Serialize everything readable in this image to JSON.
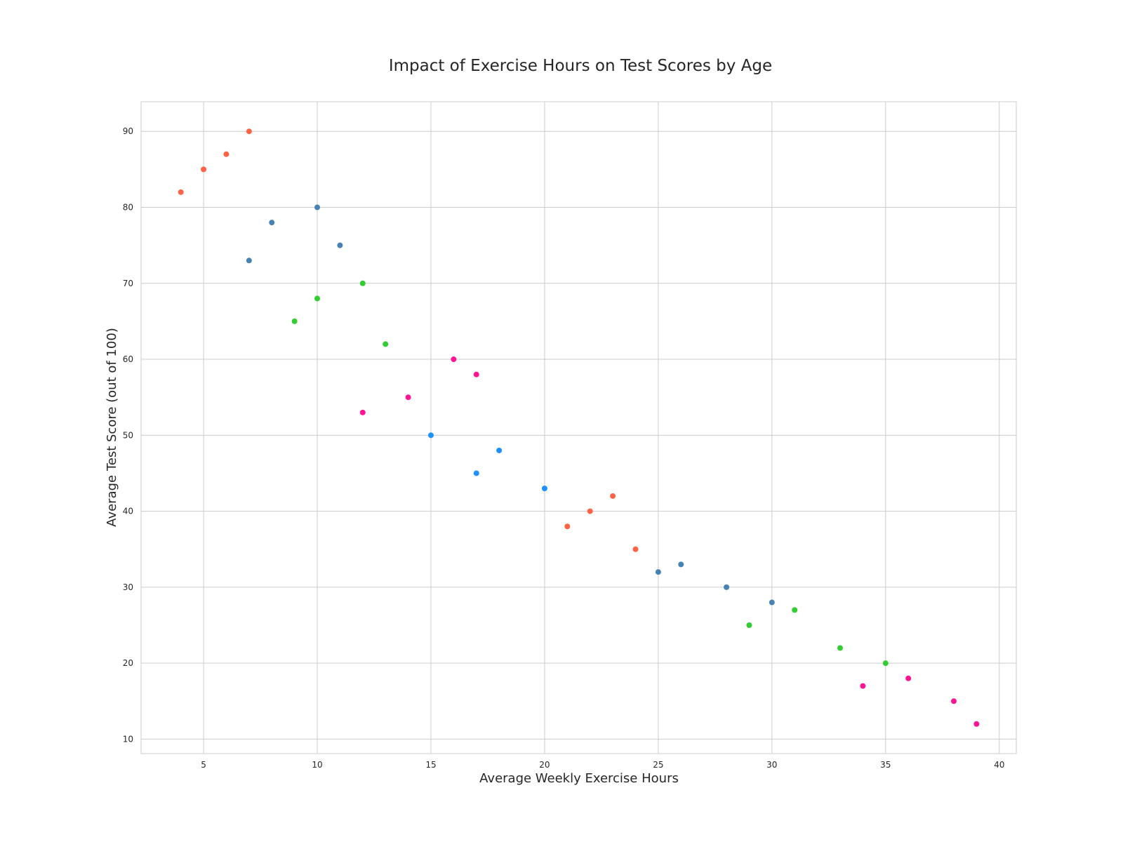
{
  "chart_data": {
    "type": "scatter",
    "title": "Impact of Exercise Hours on Test Scores by Age",
    "xlabel": "Average Weekly Exercise Hours",
    "ylabel": "Average Test Score (out of 100)",
    "xlim": [
      2.25,
      40.75
    ],
    "ylim": [
      8.1,
      93.9
    ],
    "xticks": [
      5,
      10,
      15,
      20,
      25,
      30,
      35,
      40
    ],
    "yticks": [
      10,
      20,
      30,
      40,
      50,
      60,
      70,
      80,
      90
    ],
    "grid": true,
    "legend": "none",
    "points": [
      {
        "x": 4,
        "y": 82,
        "color": "#ff6347"
      },
      {
        "x": 5,
        "y": 85,
        "color": "#ff6347"
      },
      {
        "x": 6,
        "y": 87,
        "color": "#ff6347"
      },
      {
        "x": 7,
        "y": 90,
        "color": "#ff6347"
      },
      {
        "x": 7,
        "y": 73,
        "color": "#4682b4"
      },
      {
        "x": 8,
        "y": 78,
        "color": "#4682b4"
      },
      {
        "x": 10,
        "y": 80,
        "color": "#4682b4"
      },
      {
        "x": 11,
        "y": 75,
        "color": "#4682b4"
      },
      {
        "x": 9,
        "y": 65,
        "color": "#32cd32"
      },
      {
        "x": 10,
        "y": 68,
        "color": "#32cd32"
      },
      {
        "x": 12,
        "y": 70,
        "color": "#32cd32"
      },
      {
        "x": 13,
        "y": 62,
        "color": "#32cd32"
      },
      {
        "x": 12,
        "y": 53,
        "color": "#ff1493"
      },
      {
        "x": 14,
        "y": 55,
        "color": "#ff1493"
      },
      {
        "x": 16,
        "y": 60,
        "color": "#ff1493"
      },
      {
        "x": 17,
        "y": 58,
        "color": "#ff1493"
      },
      {
        "x": 15,
        "y": 50,
        "color": "#1e90ff"
      },
      {
        "x": 17,
        "y": 45,
        "color": "#1e90ff"
      },
      {
        "x": 18,
        "y": 48,
        "color": "#1e90ff"
      },
      {
        "x": 20,
        "y": 43,
        "color": "#1e90ff"
      },
      {
        "x": 21,
        "y": 38,
        "color": "#ff6347"
      },
      {
        "x": 22,
        "y": 40,
        "color": "#ff6347"
      },
      {
        "x": 23,
        "y": 42,
        "color": "#ff6347"
      },
      {
        "x": 24,
        "y": 35,
        "color": "#ff6347"
      },
      {
        "x": 25,
        "y": 32,
        "color": "#4682b4"
      },
      {
        "x": 26,
        "y": 33,
        "color": "#4682b4"
      },
      {
        "x": 28,
        "y": 30,
        "color": "#4682b4"
      },
      {
        "x": 30,
        "y": 28,
        "color": "#4682b4"
      },
      {
        "x": 29,
        "y": 25,
        "color": "#32cd32"
      },
      {
        "x": 31,
        "y": 27,
        "color": "#32cd32"
      },
      {
        "x": 33,
        "y": 22,
        "color": "#32cd32"
      },
      {
        "x": 35,
        "y": 20,
        "color": "#32cd32"
      },
      {
        "x": 34,
        "y": 17,
        "color": "#ff1493"
      },
      {
        "x": 36,
        "y": 18,
        "color": "#ff1493"
      },
      {
        "x": 38,
        "y": 15,
        "color": "#ff1493"
      },
      {
        "x": 39,
        "y": 12,
        "color": "#ff1493"
      }
    ]
  }
}
